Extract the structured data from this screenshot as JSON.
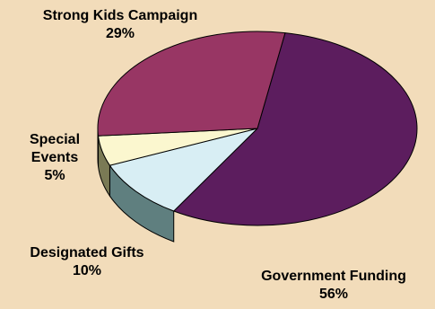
{
  "chart_data": {
    "type": "pie",
    "style": "3d",
    "slices": [
      {
        "label_lines": [
          "Government Funding"
        ],
        "pct_label": "56%",
        "value": 56,
        "color": "#5c1d5e",
        "side_color": "#3a0f3c"
      },
      {
        "label_lines": [
          "Designated Gifts"
        ],
        "pct_label": "10%",
        "value": 10,
        "color": "#d8eef4",
        "side_color": "#5f7f7f"
      },
      {
        "label_lines": [
          "Special",
          "Events"
        ],
        "pct_label": "5%",
        "value": 5,
        "color": "#fbf7cf",
        "side_color": "#7a7a55"
      },
      {
        "label_lines": [
          "Strong Kids Campaign"
        ],
        "pct_label": "29%",
        "value": 29,
        "color": "#983664",
        "side_color": "#5e1f3d"
      }
    ],
    "legend": "none"
  },
  "colors": {
    "background": "#f2dcba",
    "outline": "#000000"
  }
}
